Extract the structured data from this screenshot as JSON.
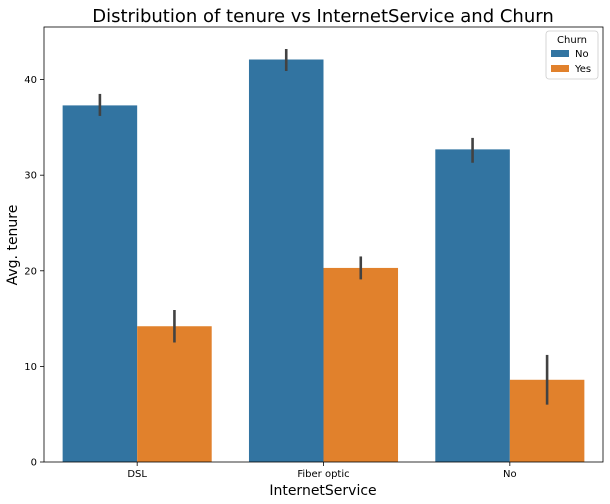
{
  "chart_data": {
    "type": "bar",
    "title": "Distribution of tenure vs InternetService and Churn",
    "xlabel": "InternetService",
    "ylabel": "Avg. tenure",
    "categories": [
      "DSL",
      "Fiber optic",
      "No"
    ],
    "ylim": [
      0,
      45.5
    ],
    "yticks": [
      0,
      10,
      20,
      30,
      40
    ],
    "legend": {
      "title": "Churn",
      "position": "top-right"
    },
    "grid": false,
    "series": [
      {
        "name": "No",
        "color": "#3274a1",
        "values": [
          37.3,
          42.1,
          32.7
        ],
        "ci": [
          [
            36.2,
            38.5
          ],
          [
            40.9,
            43.2
          ],
          [
            31.3,
            33.9
          ]
        ]
      },
      {
        "name": "Yes",
        "color": "#e1812c",
        "values": [
          14.2,
          20.3,
          8.6
        ],
        "ci": [
          [
            12.5,
            15.9
          ],
          [
            19.1,
            21.5
          ],
          [
            6.0,
            11.2
          ]
        ]
      }
    ],
    "errorbar_color": "#424242"
  }
}
